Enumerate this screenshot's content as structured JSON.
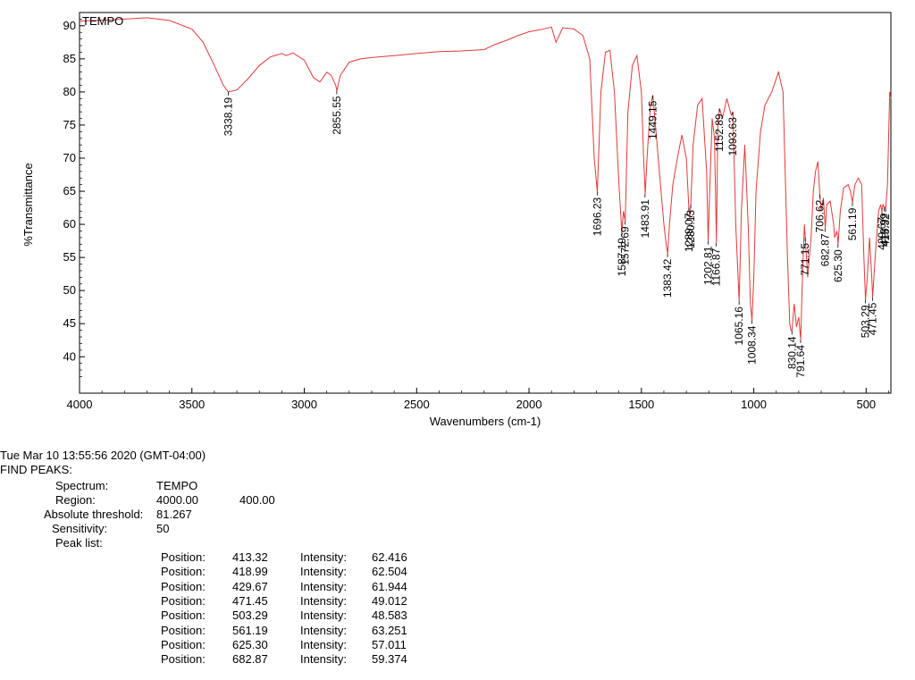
{
  "chart_data": {
    "type": "line",
    "title": "",
    "xlabel": "Wavenumbers (cm-1)",
    "ylabel": "%Transmittance",
    "xlim": [
      4000,
      390
    ],
    "ylim": [
      34.5,
      92
    ],
    "x_ticks": [
      4000,
      3500,
      3000,
      2500,
      2000,
      1500,
      1000,
      500
    ],
    "y_ticks": [
      40,
      45,
      50,
      55,
      60,
      65,
      70,
      75,
      80,
      85,
      90
    ],
    "grid": false,
    "line_color": "#e03a3a",
    "series": [
      {
        "name": "TEMPO",
        "x": [
          4000,
          3850,
          3700,
          3600,
          3500,
          3450,
          3400,
          3360,
          3338,
          3300,
          3250,
          3200,
          3150,
          3100,
          3080,
          3050,
          3000,
          2980,
          2960,
          2930,
          2900,
          2880,
          2860,
          2855,
          2840,
          2800,
          2750,
          2700,
          2600,
          2500,
          2400,
          2300,
          2200,
          2150,
          2100,
          2050,
          2000,
          1950,
          1900,
          1880,
          1850,
          1800,
          1760,
          1730,
          1710,
          1696,
          1680,
          1660,
          1640,
          1620,
          1600,
          1587,
          1580,
          1572,
          1560,
          1540,
          1520,
          1500,
          1490,
          1483,
          1475,
          1460,
          1449,
          1440,
          1420,
          1400,
          1390,
          1383,
          1375,
          1360,
          1340,
          1320,
          1300,
          1289,
          1285,
          1280,
          1270,
          1250,
          1230,
          1210,
          1203,
          1195,
          1185,
          1175,
          1166,
          1160,
          1152,
          1140,
          1120,
          1100,
          1093,
          1080,
          1070,
          1065,
          1055,
          1040,
          1025,
          1015,
          1008,
          1000,
          990,
          970,
          950,
          920,
          890,
          870,
          850,
          840,
          835,
          830,
          820,
          810,
          800,
          795,
          791,
          785,
          775,
          771,
          760,
          745,
          735,
          725,
          715,
          706,
          700,
          690,
          682,
          675,
          660,
          645,
          640,
          630,
          625,
          615,
          600,
          580,
          570,
          561,
          550,
          535,
          520,
          510,
          503,
          495,
          485,
          475,
          471,
          460,
          445,
          435,
          430,
          425,
          419,
          416,
          413,
          405,
          395,
          390
        ],
        "y": [
          90.7,
          90.9,
          91.2,
          90.8,
          89.5,
          87.5,
          84.0,
          81.0,
          80.0,
          80.3,
          82.0,
          84.0,
          85.3,
          85.8,
          85.5,
          85.9,
          84.8,
          83.5,
          82.2,
          81.5,
          83.0,
          82.5,
          81.0,
          80.2,
          82.5,
          84.5,
          85.0,
          85.2,
          85.5,
          85.8,
          86.1,
          86.2,
          86.4,
          87.2,
          87.8,
          88.5,
          89.1,
          89.4,
          89.8,
          87.5,
          89.7,
          89.5,
          88.5,
          85.0,
          70.0,
          64.9,
          80.0,
          86.0,
          86.3,
          80.0,
          66.0,
          58.8,
          62.0,
          60.5,
          77.0,
          84.0,
          85.5,
          80.0,
          70.0,
          64.6,
          70.0,
          78.0,
          79.5,
          76.0,
          68.0,
          60.0,
          57.0,
          55.6,
          60.0,
          66.0,
          70.0,
          73.5,
          70.0,
          62.5,
          61.0,
          63.0,
          72.0,
          78.0,
          79.0,
          68.0,
          57.5,
          66.0,
          76.0,
          73.0,
          57.2,
          75.0,
          77.5,
          76.0,
          79.0,
          76.5,
          77.0,
          60.0,
          52.0,
          48.4,
          62.0,
          72.0,
          60.0,
          48.0,
          45.5,
          52.0,
          65.0,
          74.0,
          78.0,
          80.0,
          83.0,
          80.0,
          55.0,
          45.0,
          44.0,
          43.9,
          48.0,
          44.5,
          46.0,
          44.0,
          42.6,
          50.0,
          60.0,
          58.0,
          52.0,
          58.0,
          65.0,
          68.0,
          69.5,
          64.5,
          62.0,
          64.0,
          59.4,
          63.0,
          63.5,
          60.0,
          58.0,
          59.0,
          57.0,
          62.0,
          65.5,
          66.0,
          65.0,
          63.3,
          66.0,
          67.0,
          66.0,
          55.0,
          48.6,
          52.0,
          58.0,
          52.0,
          49.0,
          55.0,
          62.0,
          63.0,
          61.9,
          63.0,
          62.5,
          62.6,
          62.4,
          66.0,
          80.0,
          79.0
        ]
      }
    ],
    "annotations": [
      {
        "x": 3338.19,
        "y": 80.0,
        "label": "3338.19"
      },
      {
        "x": 2855.55,
        "y": 80.2,
        "label": "2855.55"
      },
      {
        "x": 1696.23,
        "y": 64.9,
        "label": "1696.23"
      },
      {
        "x": 1587.19,
        "y": 58.8,
        "label": "1587.19"
      },
      {
        "x": 1572.69,
        "y": 60.5,
        "label": "1572.69"
      },
      {
        "x": 1483.91,
        "y": 64.6,
        "label": "1483.91"
      },
      {
        "x": 1449.15,
        "y": 79.5,
        "label": "1449.15"
      },
      {
        "x": 1383.42,
        "y": 55.6,
        "label": "1383.42"
      },
      {
        "x": 1289.07,
        "y": 62.5,
        "label": "1289.07"
      },
      {
        "x": 1280.13,
        "y": 63.0,
        "label": "1280.13"
      },
      {
        "x": 1202.81,
        "y": 57.5,
        "label": "1202.81"
      },
      {
        "x": 1166.87,
        "y": 57.2,
        "label": "1166.87"
      },
      {
        "x": 1152.89,
        "y": 77.5,
        "label": "1152.89"
      },
      {
        "x": 1093.63,
        "y": 77.0,
        "label": "1093.63"
      },
      {
        "x": 1065.16,
        "y": 48.4,
        "label": "1065.16"
      },
      {
        "x": 1008.34,
        "y": 45.5,
        "label": "1008.34"
      },
      {
        "x": 830.14,
        "y": 43.9,
        "label": "830.14"
      },
      {
        "x": 791.64,
        "y": 42.6,
        "label": "791.64"
      },
      {
        "x": 771.15,
        "y": 58.0,
        "label": "771.15"
      },
      {
        "x": 706.62,
        "y": 64.5,
        "label": "706.62"
      },
      {
        "x": 682.87,
        "y": 59.4,
        "label": "682.87"
      },
      {
        "x": 625.3,
        "y": 57.0,
        "label": "625.30"
      },
      {
        "x": 561.19,
        "y": 63.3,
        "label": "561.19"
      },
      {
        "x": 503.29,
        "y": 48.6,
        "label": "503.29"
      },
      {
        "x": 471.45,
        "y": 49.0,
        "label": "471.45"
      },
      {
        "x": 429.67,
        "y": 61.9,
        "label": "429.67"
      },
      {
        "x": 418.99,
        "y": 62.5,
        "label": "418.99"
      },
      {
        "x": 413.32,
        "y": 62.4,
        "label": "413.32"
      }
    ]
  },
  "report": {
    "timestamp": "Tue Mar 10 13:55:56 2020 (GMT-04:00)",
    "heading": "FIND PEAKS:",
    "spectrum_label": "Spectrum:",
    "spectrum_value": "TEMPO",
    "region_label": "Region:",
    "region_start": "4000.00",
    "region_end": "400.00",
    "threshold_label": "Absolute threshold:",
    "threshold_value": "81.267",
    "sensitivity_label": "Sensitivity:",
    "sensitivity_value": "50",
    "peak_list_label": "Peak list:",
    "position_label": "Position:",
    "intensity_label": "Intensity:",
    "peaks": [
      {
        "position": "413.32",
        "intensity": "62.416"
      },
      {
        "position": "418.99",
        "intensity": "62.504"
      },
      {
        "position": "429.67",
        "intensity": "61.944"
      },
      {
        "position": "471.45",
        "intensity": "49.012"
      },
      {
        "position": "503.29",
        "intensity": "48.583"
      },
      {
        "position": "561.19",
        "intensity": "63.251"
      },
      {
        "position": "625.30",
        "intensity": "57.011"
      },
      {
        "position": "682.87",
        "intensity": "59.374"
      }
    ]
  }
}
